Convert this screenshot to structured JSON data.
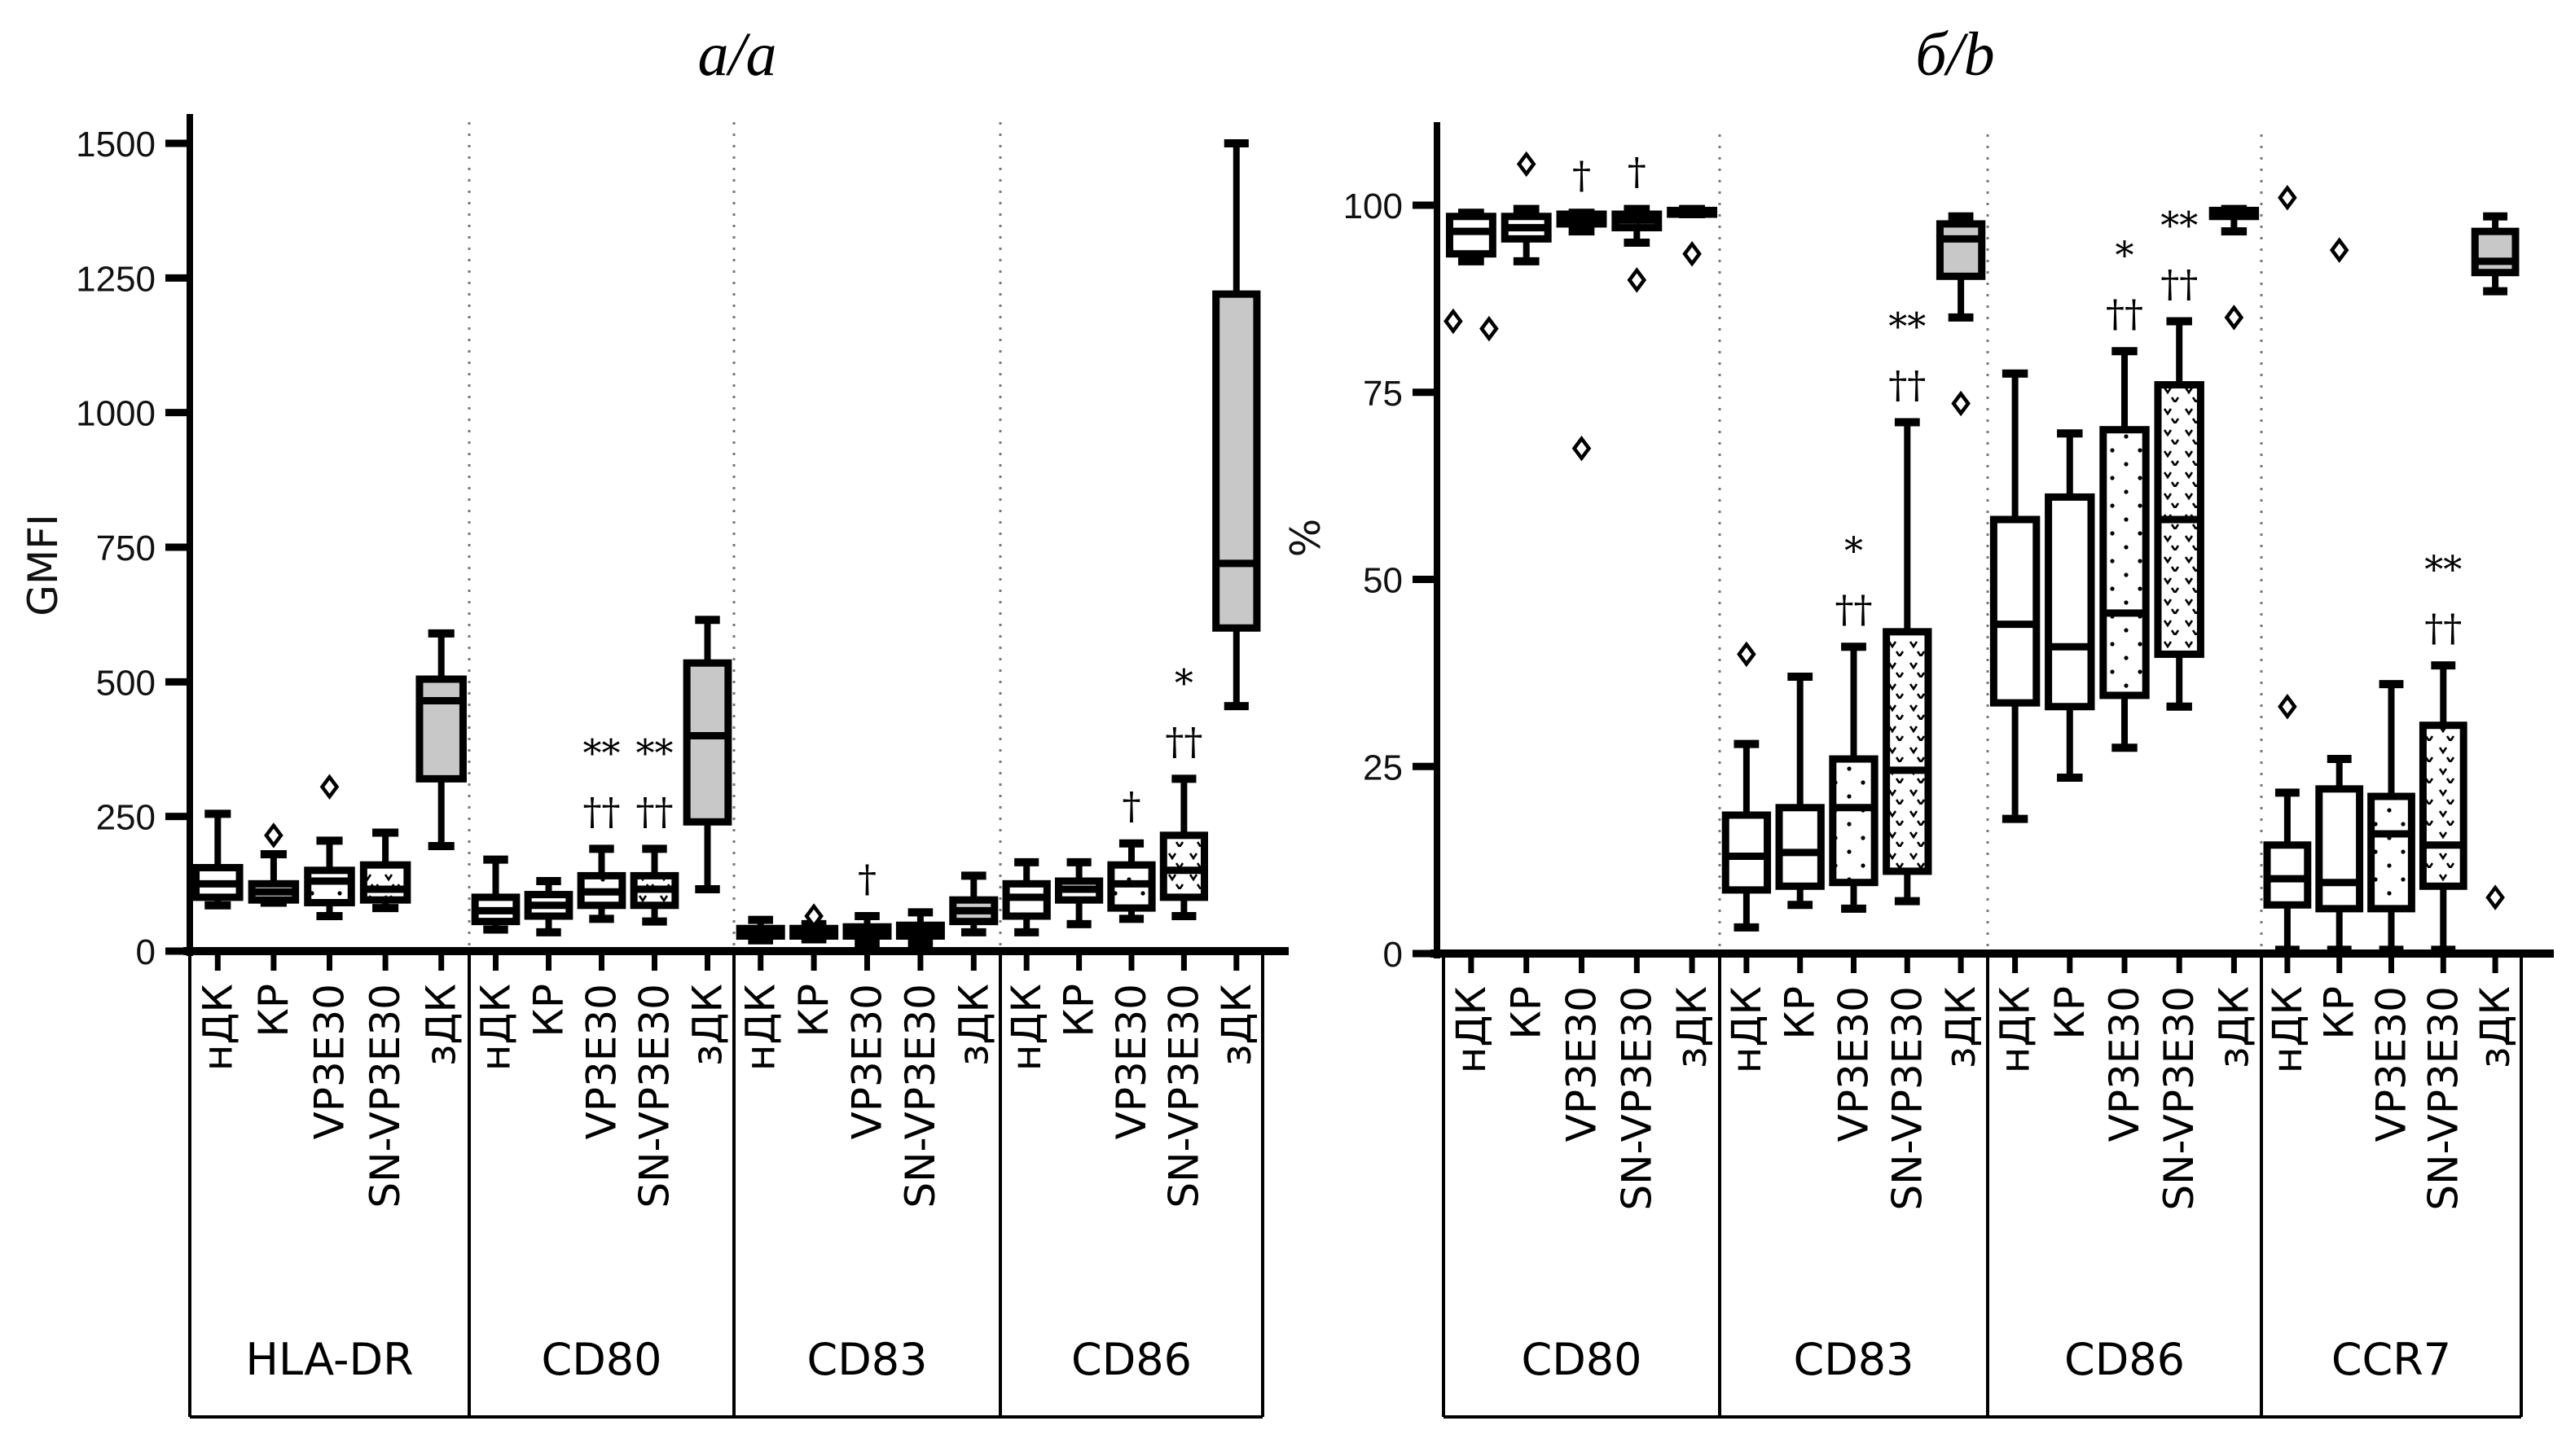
{
  "figure": {
    "panel_a_title": "а/a",
    "panel_b_title": "б/b"
  },
  "chart_data": [
    {
      "type": "box",
      "panel": "а/a",
      "title": "а/a",
      "ylabel": "GMFI",
      "xlabel": "",
      "ylim": [
        0,
        1500
      ],
      "yticks": [
        0,
        250,
        500,
        750,
        1000,
        1250,
        1500
      ],
      "ytick_labels": [
        "0",
        "250",
        "500",
        "750",
        "1000",
        "1250",
        "1500"
      ],
      "categories": [
        "нДК",
        "КР",
        "VP3E30",
        "SN-VP3E30",
        "зДК"
      ],
      "fill_styles": {
        "нДК": "white",
        "КР": "white",
        "VP3E30": "dotted",
        "SN-VP3E30": "chevron",
        "зДК": "gray"
      },
      "grid": false,
      "legend": "none",
      "groups": [
        {
          "name": "HLA-DR",
          "boxes": [
            {
              "category": "нДК",
              "min": 85,
              "q1": 100,
              "median": 125,
              "q3": 155,
              "max": 255,
              "outliers": [],
              "sig": ""
            },
            {
              "category": "КР",
              "min": 90,
              "q1": 95,
              "median": 110,
              "q3": 125,
              "max": 180,
              "outliers": [
                215
              ],
              "sig": ""
            },
            {
              "category": "VP3E30",
              "min": 65,
              "q1": 90,
              "median": 130,
              "q3": 150,
              "max": 205,
              "outliers": [
                305
              ],
              "sig": ""
            },
            {
              "category": "SN-VP3E30",
              "min": 80,
              "q1": 95,
              "median": 115,
              "q3": 160,
              "max": 220,
              "outliers": [],
              "sig": ""
            },
            {
              "category": "зДК",
              "min": 195,
              "q1": 320,
              "median": 465,
              "q3": 505,
              "max": 590,
              "outliers": [],
              "sig": ""
            }
          ]
        },
        {
          "name": "CD80",
          "boxes": [
            {
              "category": "нДК",
              "min": 40,
              "q1": 55,
              "median": 75,
              "q3": 100,
              "max": 170,
              "outliers": [],
              "sig": ""
            },
            {
              "category": "КР",
              "min": 35,
              "q1": 65,
              "median": 85,
              "q3": 105,
              "max": 130,
              "outliers": [],
              "sig": ""
            },
            {
              "category": "VP3E30",
              "min": 60,
              "q1": 85,
              "median": 110,
              "q3": 140,
              "max": 190,
              "outliers": [],
              "sig": "**\n††"
            },
            {
              "category": "SN-VP3E30",
              "min": 55,
              "q1": 85,
              "median": 115,
              "q3": 140,
              "max": 190,
              "outliers": [],
              "sig": "**\n††"
            },
            {
              "category": "зДК",
              "min": 115,
              "q1": 240,
              "median": 400,
              "q3": 535,
              "max": 615,
              "outliers": [],
              "sig": ""
            }
          ]
        },
        {
          "name": "CD83",
          "boxes": [
            {
              "category": "нДК",
              "min": 20,
              "q1": 28,
              "median": 35,
              "q3": 42,
              "max": 58,
              "outliers": [],
              "sig": ""
            },
            {
              "category": "КР",
              "min": 22,
              "q1": 28,
              "median": 35,
              "q3": 42,
              "max": 50,
              "outliers": [
                65
              ],
              "sig": ""
            },
            {
              "category": "VP3E30",
              "min": 15,
              "q1": 28,
              "median": 35,
              "q3": 45,
              "max": 65,
              "outliers": [],
              "sig": "†"
            },
            {
              "category": "SN-VP3E30",
              "min": 15,
              "q1": 28,
              "median": 38,
              "q3": 48,
              "max": 72,
              "outliers": [],
              "sig": ""
            },
            {
              "category": "зДК",
              "min": 35,
              "q1": 55,
              "median": 75,
              "q3": 95,
              "max": 140,
              "outliers": [],
              "sig": ""
            }
          ]
        },
        {
          "name": "CD86",
          "boxes": [
            {
              "category": "нДК",
              "min": 35,
              "q1": 65,
              "median": 100,
              "q3": 125,
              "max": 165,
              "outliers": [],
              "sig": ""
            },
            {
              "category": "КР",
              "min": 50,
              "q1": 95,
              "median": 115,
              "q3": 130,
              "max": 165,
              "outliers": [],
              "sig": ""
            },
            {
              "category": "VP3E30",
              "min": 60,
              "q1": 80,
              "median": 125,
              "q3": 160,
              "max": 200,
              "outliers": [],
              "sig": "†"
            },
            {
              "category": "SN-VP3E30",
              "min": 65,
              "q1": 100,
              "median": 150,
              "q3": 215,
              "max": 320,
              "outliers": [],
              "sig": "*\n††"
            },
            {
              "category": "зДК",
              "min": 455,
              "q1": 600,
              "median": 720,
              "q3": 1220,
              "max": 1500,
              "outliers": [],
              "sig": ""
            }
          ]
        }
      ]
    },
    {
      "type": "box",
      "panel": "б/b",
      "title": "б/b",
      "ylabel": "%",
      "xlabel": "",
      "ylim": [
        0,
        110
      ],
      "yticks": [
        0,
        25,
        50,
        75,
        100
      ],
      "ytick_labels": [
        "0",
        "25",
        "50",
        "75",
        "100"
      ],
      "categories": [
        "нДК",
        "КР",
        "VP3E30",
        "SN-VP3E30",
        "зДК"
      ],
      "fill_styles": {
        "нДК": "white",
        "КР": "white",
        "VP3E30": "dotted",
        "SN-VP3E30": "chevron",
        "зДК": "gray"
      },
      "grid": false,
      "legend": "none",
      "groups": [
        {
          "name": "CD80",
          "boxes": [
            {
              "category": "нДК",
              "min": 92.5,
              "q1": 93.5,
              "median": 96.5,
              "q3": 98.5,
              "max": 99,
              "outliers": [
                84.5,
                83.5
              ],
              "sig": ""
            },
            {
              "category": "КР",
              "min": 92.5,
              "q1": 95.5,
              "median": 97,
              "q3": 98.5,
              "max": 99.5,
              "outliers": [
                105.5
              ],
              "sig": ""
            },
            {
              "category": "VP3E30",
              "min": 96.5,
              "q1": 97.5,
              "median": 98,
              "q3": 98.8,
              "max": 99,
              "outliers": [
                67.5
              ],
              "sig": "†"
            },
            {
              "category": "SN-VP3E30",
              "min": 95,
              "q1": 97,
              "median": 98,
              "q3": 98.8,
              "max": 99.5,
              "outliers": [
                90
              ],
              "sig": "†"
            },
            {
              "category": "зДК",
              "min": 98.8,
              "q1": 98.8,
              "median": 99,
              "q3": 99.3,
              "max": 99.5,
              "outliers": [
                93.5
              ],
              "sig": ""
            }
          ]
        },
        {
          "name": "CD83",
          "boxes": [
            {
              "category": "нДК",
              "min": 3.5,
              "q1": 8.5,
              "median": 13,
              "q3": 18.5,
              "max": 28,
              "outliers": [
                40
              ],
              "sig": ""
            },
            {
              "category": "КР",
              "min": 6.5,
              "q1": 9,
              "median": 13.5,
              "q3": 19.5,
              "max": 37,
              "outliers": [],
              "sig": ""
            },
            {
              "category": "VP3E30",
              "min": 6,
              "q1": 9.5,
              "median": 19.5,
              "q3": 26,
              "max": 41,
              "outliers": [],
              "sig": "*\n††"
            },
            {
              "category": "SN-VP3E30",
              "min": 7,
              "q1": 11,
              "median": 24.5,
              "q3": 43,
              "max": 71,
              "outliers": [],
              "sig": "**\n††"
            },
            {
              "category": "зДК",
              "min": 85,
              "q1": 90.5,
              "median": 95.5,
              "q3": 97.5,
              "max": 98.5,
              "outliers": [
                73.5
              ],
              "sig": ""
            }
          ]
        },
        {
          "name": "CD86",
          "boxes": [
            {
              "category": "нДК",
              "min": 18,
              "q1": 33.5,
              "median": 44,
              "q3": 58,
              "max": 77.5,
              "outliers": [],
              "sig": ""
            },
            {
              "category": "КР",
              "min": 23.5,
              "q1": 33,
              "median": 41,
              "q3": 61,
              "max": 69.5,
              "outliers": [],
              "sig": ""
            },
            {
              "category": "VP3E30",
              "min": 27.5,
              "q1": 34.5,
              "median": 45.5,
              "q3": 70,
              "max": 80.5,
              "outliers": [],
              "sig": "*\n††"
            },
            {
              "category": "SN-VP3E30",
              "min": 33,
              "q1": 40,
              "median": 58,
              "q3": 76,
              "max": 84.5,
              "outliers": [],
              "sig": "**\n††"
            },
            {
              "category": "зДК",
              "min": 96.5,
              "q1": 98.5,
              "median": 99,
              "q3": 99.3,
              "max": 99.5,
              "outliers": [
                85
              ],
              "sig": ""
            }
          ]
        },
        {
          "name": "CCR7",
          "boxes": [
            {
              "category": "нДК",
              "min": 0.5,
              "q1": 6.5,
              "median": 10,
              "q3": 14.5,
              "max": 21.5,
              "outliers": [
                33,
                101
              ],
              "sig": ""
            },
            {
              "category": "КР",
              "min": 0.5,
              "q1": 6,
              "median": 9.5,
              "q3": 22,
              "max": 26,
              "outliers": [
                94
              ],
              "sig": ""
            },
            {
              "category": "VP3E30",
              "min": 0.5,
              "q1": 6,
              "median": 16,
              "q3": 21,
              "max": 36,
              "outliers": [],
              "sig": ""
            },
            {
              "category": "SN-VP3E30",
              "min": 0.5,
              "q1": 9,
              "median": 14.5,
              "q3": 30.5,
              "max": 38.5,
              "outliers": [],
              "sig": "**\n††"
            },
            {
              "category": "зДК",
              "min": 88.5,
              "q1": 91,
              "median": 92.5,
              "q3": 96.5,
              "max": 98.5,
              "outliers": [
                7.5
              ],
              "sig": ""
            }
          ]
        }
      ]
    }
  ]
}
